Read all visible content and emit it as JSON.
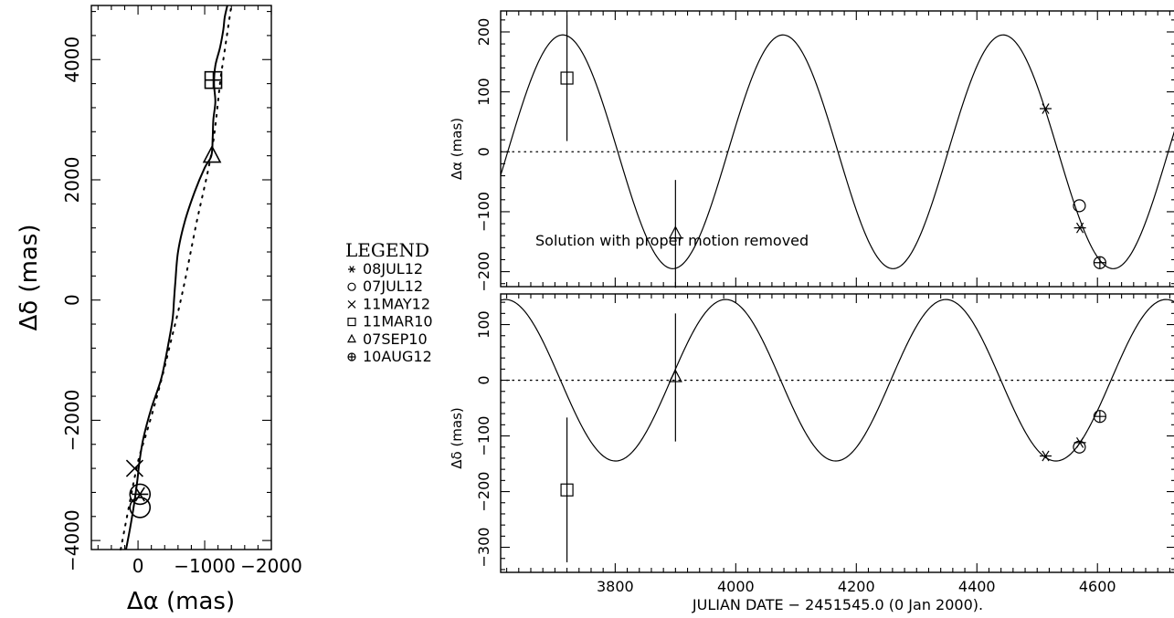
{
  "legend": {
    "title": "LEGEND",
    "entries": [
      {
        "symbol": "asterisk",
        "label": "08JUL12"
      },
      {
        "symbol": "circle",
        "label": "07JUL12"
      },
      {
        "symbol": "cross",
        "label": "11MAY12"
      },
      {
        "symbol": "square",
        "label": "11MAR10"
      },
      {
        "symbol": "triangle",
        "label": "07SEP10"
      },
      {
        "symbol": "circle-plus",
        "label": "10AUG12"
      }
    ]
  },
  "chart_data": [
    {
      "id": "sky-track",
      "type": "line",
      "title": "",
      "xlabel": "Δα (mas)",
      "ylabel": "Δδ (mas)",
      "xlim": [
        700,
        -2000
      ],
      "ylim": [
        -4150,
        4900
      ],
      "xticks": [
        0,
        -1000,
        -2000
      ],
      "xtick_labels": [
        "0",
        "−1000",
        "−2000"
      ],
      "yticks": [
        -4000,
        -2000,
        0,
        2000,
        4000
      ],
      "ytick_labels": [
        "−4000",
        "−2000",
        "0",
        "2000",
        "4000"
      ],
      "series": [
        {
          "style": "solid",
          "x": [
            180,
            120,
            60,
            10,
            -20,
            -80,
            -200,
            -350,
            -460,
            -520,
            -540,
            -560,
            -600,
            -700,
            -850,
            -1000,
            -1100,
            -1120,
            -1130,
            -1160,
            -1140,
            -1160,
            -1230,
            -1280,
            -1300,
            -1340
          ],
          "y": [
            -4150,
            -3800,
            -3400,
            -3000,
            -2700,
            -2300,
            -1800,
            -1300,
            -700,
            -300,
            0,
            300,
            800,
            1300,
            1800,
            2200,
            2400,
            2700,
            3000,
            3300,
            3600,
            3900,
            4200,
            4500,
            4700,
            4900
          ]
        },
        {
          "style": "dotted",
          "x": [
            260,
            200,
            130,
            60,
            -20,
            -130,
            -260,
            -380,
            -490,
            -600,
            -700,
            -790,
            -880,
            -960,
            -1040,
            -1110,
            -1160,
            -1200,
            -1240,
            -1280,
            -1320,
            -1360,
            -1400
          ],
          "y": [
            -4150,
            -3800,
            -3400,
            -3000,
            -2600,
            -2200,
            -1700,
            -1200,
            -700,
            -200,
            300,
            800,
            1300,
            1700,
            2100,
            2500,
            2900,
            3300,
            3700,
            4000,
            4300,
            4600,
            4900
          ]
        }
      ],
      "points": [
        {
          "symbol": "cross",
          "x": 50,
          "y": -2800
        },
        {
          "symbol": "circle",
          "x": -30,
          "y": -3230
        },
        {
          "symbol": "asterisk",
          "x": -30,
          "y": -3230
        },
        {
          "symbol": "circle",
          "x": -30,
          "y": -3450
        },
        {
          "symbol": "square",
          "x": -1130,
          "y": 3660
        },
        {
          "symbol": "plus",
          "x": -1130,
          "y": 3660
        },
        {
          "symbol": "triangle",
          "x": -1110,
          "y": 2390
        }
      ]
    },
    {
      "id": "ra-offset",
      "type": "line",
      "title": "",
      "xlabel": "",
      "ylabel": "Δα (mas)",
      "annotation": "Solution with proper motion removed",
      "xlim": [
        3610,
        4730
      ],
      "ylim": [
        -225,
        235
      ],
      "xticks": [
        3800,
        4000,
        4200,
        4400,
        4600
      ],
      "yticks": [
        -200,
        -100,
        0,
        100,
        200
      ],
      "ytick_labels": [
        "−200",
        "−100",
        "0",
        "100",
        "200"
      ],
      "model": {
        "amplitude": 195,
        "period": 365.25,
        "phase_peak_x": 3713
      },
      "points": [
        {
          "symbol": "square",
          "x": 3720,
          "y": 123,
          "yerr": 105
        },
        {
          "symbol": "triangle",
          "x": 3900,
          "y": -137,
          "yerr": 90
        },
        {
          "symbol": "asterisk",
          "x": 4514,
          "y": 72
        },
        {
          "symbol": "circle",
          "x": 4570,
          "y": -90
        },
        {
          "symbol": "asterisk",
          "x": 4571,
          "y": -127
        },
        {
          "symbol": "circle-plus",
          "x": 4604,
          "y": -185
        }
      ]
    },
    {
      "id": "dec-offset",
      "type": "line",
      "title": "",
      "xlabel": "JULIAN DATE − 2451545.0 (0 Jan 2000).",
      "ylabel": "Δδ (mas)",
      "xlim": [
        3610,
        4730
      ],
      "ylim": [
        -345,
        155
      ],
      "xticks": [
        3800,
        4000,
        4200,
        4400,
        4600
      ],
      "xtick_labels": [
        "3800",
        "4000",
        "4200",
        "4400",
        "4600"
      ],
      "yticks": [
        -300,
        -200,
        -100,
        0,
        100
      ],
      "ytick_labels": [
        "−300",
        "−200",
        "−100",
        "0",
        "100"
      ],
      "model": {
        "amplitude": 145,
        "period": 365.25,
        "phase_peak_x": 3618
      },
      "points": [
        {
          "symbol": "square",
          "x": 3720,
          "y": -197,
          "yerr": 130
        },
        {
          "symbol": "triangle",
          "x": 3900,
          "y": 5,
          "yerr": 115
        },
        {
          "symbol": "asterisk",
          "x": 4514,
          "y": -136
        },
        {
          "symbol": "circle",
          "x": 4570,
          "y": -120
        },
        {
          "symbol": "asterisk",
          "x": 4571,
          "y": -112
        },
        {
          "symbol": "circle-plus",
          "x": 4604,
          "y": -65
        }
      ]
    }
  ]
}
